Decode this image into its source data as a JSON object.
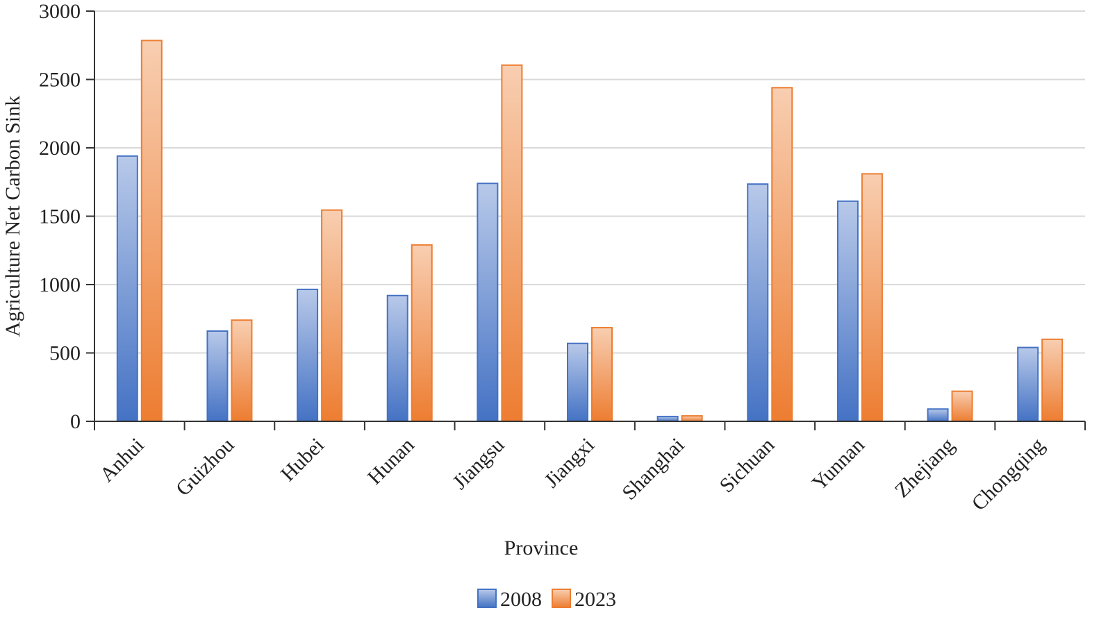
{
  "chart_data": {
    "type": "bar",
    "title": "",
    "xlabel": "Province",
    "ylabel": "Agriculture Net Carbon Sink",
    "ylim": [
      0,
      3000
    ],
    "yticks": [
      0,
      500,
      1000,
      1500,
      2000,
      2500,
      3000
    ],
    "grid": true,
    "legend_position": "bottom",
    "categories": [
      "Anhui",
      "Guizhou",
      "Hubei",
      "Hunan",
      "Jiangsu",
      "Jiangxi",
      "Shanghai",
      "Sichuan",
      "Yunnan",
      "Zhejiang",
      "Chongqing"
    ],
    "series": [
      {
        "name": "2008",
        "color": "#4472C4",
        "values": [
          1940,
          660,
          965,
          920,
          1740,
          570,
          35,
          1735,
          1610,
          90,
          540
        ]
      },
      {
        "name": "2023",
        "color": "#ED7D31",
        "values": [
          2785,
          740,
          1545,
          1290,
          2605,
          685,
          40,
          2440,
          1810,
          220,
          600
        ]
      }
    ]
  }
}
